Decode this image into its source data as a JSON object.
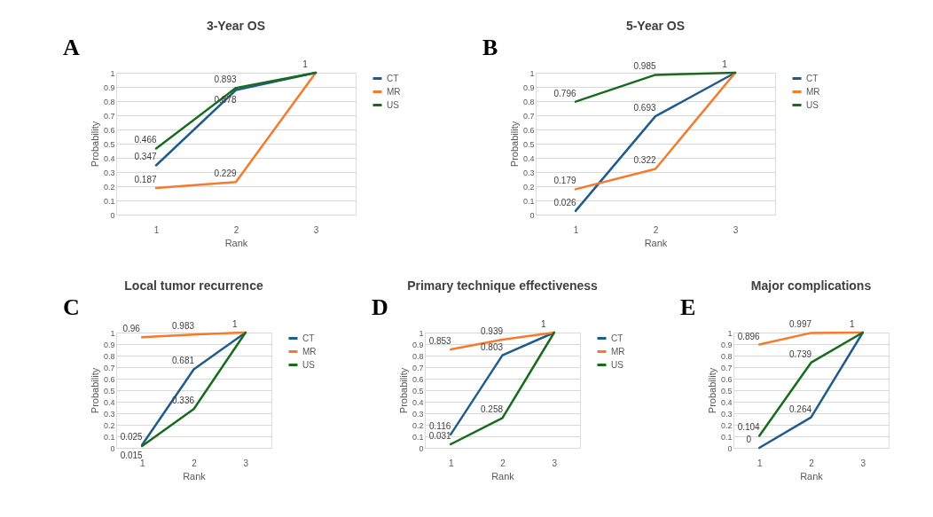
{
  "chart_data": [
    {
      "type": "line",
      "title": "3-Year OS",
      "annotations": [
        "A"
      ],
      "xlabel": "Rank",
      "ylabel": "Probability",
      "categories": [
        "1",
        "2",
        "3"
      ],
      "ylim": [
        0,
        1
      ],
      "yticks": [
        0,
        0.1,
        0.2,
        0.3,
        0.4,
        0.5,
        0.6,
        0.7,
        0.8,
        0.9,
        1
      ],
      "grid": "y",
      "legend": "right",
      "line_style": "solid",
      "marker": "none",
      "series": [
        {
          "name": "CT",
          "color": "#1f5c8b",
          "values": [
            0.347,
            0.878,
            1
          ],
          "value_labels": [
            "0.347",
            "0.878",
            null
          ]
        },
        {
          "name": "MR",
          "color": "#f47a2c",
          "values": [
            0.187,
            0.229,
            1
          ],
          "value_labels": [
            "0.187",
            "0.229",
            null
          ]
        },
        {
          "name": "US",
          "color": "#176b1c",
          "values": [
            0.466,
            0.893,
            1
          ],
          "value_labels": [
            "0.466",
            "0.893",
            "1"
          ]
        }
      ]
    },
    {
      "type": "line",
      "title": "5-Year OS",
      "annotations": [
        "B"
      ],
      "xlabel": "Rank",
      "ylabel": "Probability",
      "categories": [
        "1",
        "2",
        "3"
      ],
      "ylim": [
        0,
        1
      ],
      "yticks": [
        0,
        0.1,
        0.2,
        0.3,
        0.4,
        0.5,
        0.6,
        0.7,
        0.8,
        0.9,
        1
      ],
      "grid": "y",
      "legend": "right",
      "line_style": "solid",
      "marker": "none",
      "series": [
        {
          "name": "CT",
          "color": "#1f5c8b",
          "values": [
            0.026,
            0.693,
            1
          ],
          "value_labels": [
            "0.026",
            "0.693",
            null
          ]
        },
        {
          "name": "MR",
          "color": "#f47a2c",
          "values": [
            0.179,
            0.322,
            1
          ],
          "value_labels": [
            "0.179",
            "0.322",
            null
          ]
        },
        {
          "name": "US",
          "color": "#176b1c",
          "values": [
            0.796,
            0.985,
            1
          ],
          "value_labels": [
            "0.796",
            "0.985",
            "1"
          ]
        }
      ]
    },
    {
      "type": "line",
      "title": "Local tumor recurrence",
      "annotations": [
        "C"
      ],
      "xlabel": "Rank",
      "ylabel": "Probability",
      "categories": [
        "1",
        "2",
        "3"
      ],
      "ylim": [
        0,
        1
      ],
      "yticks": [
        0,
        0.1,
        0.2,
        0.3,
        0.4,
        0.5,
        0.6,
        0.7,
        0.8,
        0.9,
        1
      ],
      "grid": "y",
      "legend": "right",
      "line_style": "solid",
      "marker": "none",
      "series": [
        {
          "name": "CT",
          "color": "#1f5c8b",
          "values": [
            0.025,
            0.681,
            1
          ],
          "value_labels": [
            "0.025",
            "0.681",
            null
          ]
        },
        {
          "name": "MR",
          "color": "#f47a2c",
          "values": [
            0.96,
            0.983,
            1
          ],
          "value_labels": [
            "0.96",
            "0.983",
            null
          ]
        },
        {
          "name": "US",
          "color": "#176b1c",
          "values": [
            0.015,
            0.336,
            1
          ],
          "value_labels": [
            "0.015",
            "0.336",
            "1"
          ]
        }
      ]
    },
    {
      "type": "line",
      "title": "Primary technique effectiveness",
      "annotations": [
        "D"
      ],
      "xlabel": "Rank",
      "ylabel": "Probability",
      "categories": [
        "1",
        "2",
        "3"
      ],
      "ylim": [
        0,
        1
      ],
      "yticks": [
        0,
        0.1,
        0.2,
        0.3,
        0.4,
        0.5,
        0.6,
        0.7,
        0.8,
        0.9,
        1
      ],
      "grid": "y",
      "legend": "right",
      "line_style": "solid",
      "marker": "none",
      "series": [
        {
          "name": "CT",
          "color": "#1f5c8b",
          "values": [
            0.116,
            0.803,
            1
          ],
          "value_labels": [
            "0.116",
            "0.803",
            null
          ]
        },
        {
          "name": "MR",
          "color": "#f47a2c",
          "values": [
            0.853,
            0.939,
            1
          ],
          "value_labels": [
            "0.853",
            "0.939",
            null
          ]
        },
        {
          "name": "US",
          "color": "#176b1c",
          "values": [
            0.031,
            0.258,
            1
          ],
          "value_labels": [
            "0.031",
            "0.258",
            "1"
          ]
        }
      ]
    },
    {
      "type": "line",
      "title": "Major complications",
      "annotations": [
        "E"
      ],
      "xlabel": "Rank",
      "ylabel": "Probability",
      "categories": [
        "1",
        "2",
        "3"
      ],
      "ylim": [
        0,
        1
      ],
      "yticks": [
        0,
        0.1,
        0.2,
        0.3,
        0.4,
        0.5,
        0.6,
        0.7,
        0.8,
        0.9,
        1
      ],
      "grid": "y",
      "line_style": "solid",
      "marker": "none",
      "series": [
        {
          "color": "#1f5c8b",
          "values": [
            0,
            0.264,
            1
          ],
          "value_labels": [
            "0",
            "0.264",
            null
          ]
        },
        {
          "color": "#f47a2c",
          "values": [
            0.896,
            0.997,
            1
          ],
          "value_labels": [
            "0.896",
            "0.997",
            null
          ]
        },
        {
          "color": "#176b1c",
          "values": [
            0.104,
            0.739,
            1
          ],
          "value_labels": [
            "0.104",
            "0.739",
            "1"
          ]
        }
      ]
    }
  ]
}
